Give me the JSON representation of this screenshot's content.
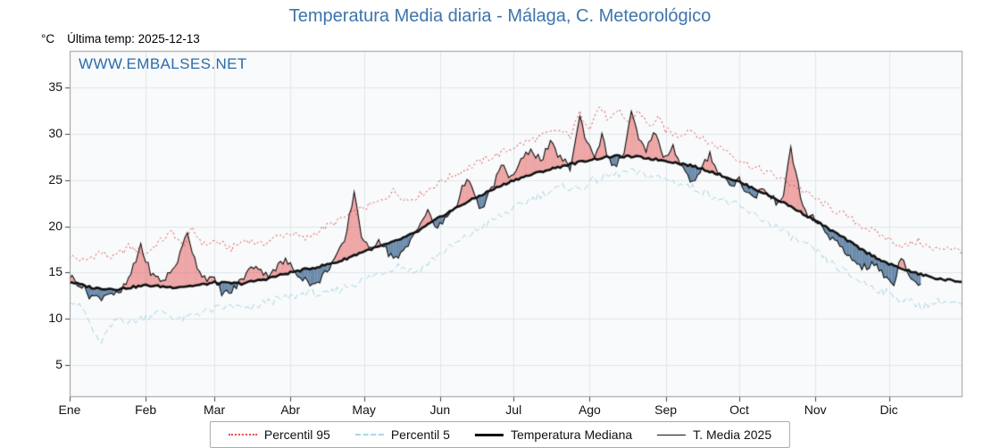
{
  "title": "Temperatura Media diaria - Málaga, C. Meteorológico",
  "header": {
    "unit": "°C",
    "last_temp": "Última temp: 2025-12-13"
  },
  "watermark": "WWW.EMBALSES.NET",
  "colors": {
    "title": "#3e74ab",
    "watermark": "#2c6ca8",
    "percentil95": "#e04b4b",
    "percentil5": "#a8d6e8",
    "median": "#111111",
    "media2025": "#111111",
    "fill_above_median": "rgba(228,80,80,0.5)",
    "fill_below_median": "rgba(70,110,150,0.8)",
    "plot_background": "#f8fafb",
    "grid": "#e3e7ea"
  },
  "legend": {
    "items": [
      {
        "label": "Percentil 95"
      },
      {
        "label": "Percentil 5"
      },
      {
        "label": "Temperatura Mediana"
      },
      {
        "label": "T. Media 2025"
      }
    ]
  },
  "chart_data": {
    "type": "line",
    "title": "Temperatura Media diaria - Málaga, C. Meteorológico",
    "xlabel": "",
    "ylabel": "°C",
    "ylim": [
      1.5,
      39
    ],
    "yticks": [
      5,
      10,
      15,
      20,
      25,
      30,
      35
    ],
    "grid": true,
    "legend_position": "bottom",
    "x_unit": "day_of_year",
    "days_in_year": 365,
    "month_ticks": {
      "labels": [
        "Ene",
        "Feb",
        "Mar",
        "Abr",
        "May",
        "Jun",
        "Jul",
        "Ago",
        "Sep",
        "Oct",
        "Nov",
        "Dic"
      ],
      "days": [
        0,
        31,
        59,
        90,
        120,
        151,
        181,
        212,
        243,
        273,
        304,
        334
      ]
    },
    "fills": {
      "between": [
        "T. Media 2025",
        "Temperatura Mediana"
      ],
      "above_color": "rgba(228,80,80,0.5)",
      "below_color": "rgba(70,110,150,0.8)"
    },
    "series": [
      {
        "name": "Percentil 95",
        "style": "dotted",
        "color": "#e04b4b",
        "width": 1,
        "jitter": 0.4,
        "points": [
          [
            0,
            16.8
          ],
          [
            6,
            16.2
          ],
          [
            12,
            17.2
          ],
          [
            18,
            16.6
          ],
          [
            24,
            17.8
          ],
          [
            31,
            17.0
          ],
          [
            36,
            18.2
          ],
          [
            42,
            19.4
          ],
          [
            46,
            17.8
          ],
          [
            50,
            19.6
          ],
          [
            55,
            18.0
          ],
          [
            59,
            18.4
          ],
          [
            66,
            17.6
          ],
          [
            72,
            18.6
          ],
          [
            78,
            18.0
          ],
          [
            84,
            18.8
          ],
          [
            90,
            19.3
          ],
          [
            96,
            18.6
          ],
          [
            102,
            19.6
          ],
          [
            108,
            20.4
          ],
          [
            114,
            21.2
          ],
          [
            120,
            22.0
          ],
          [
            126,
            22.6
          ],
          [
            132,
            23.8
          ],
          [
            138,
            22.8
          ],
          [
            144,
            23.6
          ],
          [
            151,
            24.8
          ],
          [
            157,
            25.6
          ],
          [
            163,
            26.4
          ],
          [
            169,
            27.2
          ],
          [
            175,
            27.8
          ],
          [
            181,
            28.6
          ],
          [
            187,
            29.2
          ],
          [
            193,
            29.8
          ],
          [
            199,
            30.4
          ],
          [
            204,
            29.8
          ],
          [
            208,
            32.2
          ],
          [
            212,
            30.8
          ],
          [
            216,
            33.0
          ],
          [
            220,
            31.4
          ],
          [
            224,
            32.4
          ],
          [
            228,
            31.2
          ],
          [
            232,
            32.6
          ],
          [
            236,
            30.8
          ],
          [
            240,
            31.6
          ],
          [
            243,
            30.4
          ],
          [
            248,
            29.8
          ],
          [
            253,
            30.6
          ],
          [
            258,
            29.4
          ],
          [
            263,
            28.8
          ],
          [
            268,
            28.2
          ],
          [
            273,
            27.2
          ],
          [
            279,
            26.4
          ],
          [
            285,
            25.8
          ],
          [
            291,
            25.0
          ],
          [
            297,
            24.2
          ],
          [
            304,
            23.0
          ],
          [
            310,
            22.0
          ],
          [
            316,
            21.2
          ],
          [
            322,
            20.2
          ],
          [
            328,
            19.4
          ],
          [
            334,
            18.6
          ],
          [
            340,
            17.8
          ],
          [
            346,
            18.4
          ],
          [
            352,
            17.4
          ],
          [
            358,
            17.8
          ],
          [
            364,
            17.2
          ]
        ]
      },
      {
        "name": "Percentil 5",
        "style": "dashed",
        "color": "#a8d6e8",
        "width": 1,
        "jitter": 0.45,
        "points": [
          [
            0,
            12.2
          ],
          [
            6,
            10.8
          ],
          [
            12,
            7.2
          ],
          [
            16,
            8.8
          ],
          [
            20,
            10.2
          ],
          [
            24,
            9.6
          ],
          [
            31,
            10.2
          ],
          [
            38,
            10.8
          ],
          [
            45,
            9.8
          ],
          [
            52,
            10.6
          ],
          [
            59,
            11.0
          ],
          [
            66,
            11.4
          ],
          [
            73,
            10.9
          ],
          [
            80,
            11.8
          ],
          [
            90,
            12.3
          ],
          [
            97,
            12.9
          ],
          [
            104,
            12.5
          ],
          [
            111,
            13.3
          ],
          [
            120,
            14.2
          ],
          [
            127,
            15.0
          ],
          [
            134,
            15.8
          ],
          [
            141,
            15.0
          ],
          [
            147,
            16.2
          ],
          [
            151,
            17.0
          ],
          [
            158,
            18.2
          ],
          [
            165,
            19.4
          ],
          [
            172,
            20.6
          ],
          [
            181,
            21.9
          ],
          [
            188,
            22.9
          ],
          [
            195,
            23.7
          ],
          [
            202,
            24.3
          ],
          [
            208,
            24.0
          ],
          [
            212,
            24.8
          ],
          [
            220,
            25.5
          ],
          [
            228,
            25.9
          ],
          [
            236,
            25.5
          ],
          [
            243,
            25.1
          ],
          [
            250,
            24.5
          ],
          [
            257,
            23.9
          ],
          [
            264,
            23.1
          ],
          [
            273,
            22.1
          ],
          [
            280,
            21.1
          ],
          [
            287,
            20.1
          ],
          [
            294,
            18.9
          ],
          [
            304,
            17.3
          ],
          [
            311,
            15.9
          ],
          [
            318,
            14.7
          ],
          [
            325,
            13.7
          ],
          [
            334,
            12.7
          ],
          [
            341,
            11.9
          ],
          [
            348,
            11.4
          ],
          [
            355,
            11.9
          ],
          [
            364,
            11.5
          ]
        ]
      },
      {
        "name": "Temperatura Mediana",
        "style": "solid",
        "color": "#111111",
        "width": 2.6,
        "jitter": 0.12,
        "points": [
          [
            0,
            14.0
          ],
          [
            10,
            13.3
          ],
          [
            20,
            13.2
          ],
          [
            31,
            13.6
          ],
          [
            42,
            13.4
          ],
          [
            52,
            13.6
          ],
          [
            59,
            13.9
          ],
          [
            70,
            13.8
          ],
          [
            80,
            14.3
          ],
          [
            90,
            15.0
          ],
          [
            101,
            15.6
          ],
          [
            110,
            16.2
          ],
          [
            120,
            17.3
          ],
          [
            131,
            18.2
          ],
          [
            141,
            19.3
          ],
          [
            151,
            21.0
          ],
          [
            161,
            22.5
          ],
          [
            171,
            23.8
          ],
          [
            181,
            25.0
          ],
          [
            192,
            25.9
          ],
          [
            202,
            26.6
          ],
          [
            212,
            27.2
          ],
          [
            222,
            27.6
          ],
          [
            232,
            27.5
          ],
          [
            243,
            27.1
          ],
          [
            253,
            26.6
          ],
          [
            263,
            25.8
          ],
          [
            273,
            24.8
          ],
          [
            283,
            23.6
          ],
          [
            293,
            22.3
          ],
          [
            304,
            20.6
          ],
          [
            314,
            19.0
          ],
          [
            324,
            17.3
          ],
          [
            334,
            15.9
          ],
          [
            344,
            15.0
          ],
          [
            354,
            14.3
          ],
          [
            364,
            14.0
          ]
        ]
      },
      {
        "name": "T. Media 2025",
        "style": "solid",
        "color": "#111111",
        "width": 1.1,
        "jitter": 0.45,
        "end_day": 347,
        "points": [
          [
            0,
            14.6
          ],
          [
            4,
            13.8
          ],
          [
            8,
            12.6
          ],
          [
            12,
            12.2
          ],
          [
            16,
            12.9
          ],
          [
            20,
            12.5
          ],
          [
            24,
            14.2
          ],
          [
            27,
            16.2
          ],
          [
            29,
            18.1
          ],
          [
            31,
            16.2
          ],
          [
            34,
            14.6
          ],
          [
            38,
            14.1
          ],
          [
            42,
            15.3
          ],
          [
            45,
            16.9
          ],
          [
            48,
            19.5
          ],
          [
            51,
            16.4
          ],
          [
            54,
            14.7
          ],
          [
            59,
            14.1
          ],
          [
            62,
            12.9
          ],
          [
            65,
            12.7
          ],
          [
            68,
            13.5
          ],
          [
            72,
            14.9
          ],
          [
            76,
            15.9
          ],
          [
            80,
            14.7
          ],
          [
            84,
            15.5
          ],
          [
            88,
            16.3
          ],
          [
            92,
            15.1
          ],
          [
            96,
            14.3
          ],
          [
            100,
            13.5
          ],
          [
            104,
            14.9
          ],
          [
            108,
            16.5
          ],
          [
            112,
            18.1
          ],
          [
            116,
            23.8
          ],
          [
            119,
            19.1
          ],
          [
            122,
            17.3
          ],
          [
            126,
            18.7
          ],
          [
            130,
            17.1
          ],
          [
            134,
            16.5
          ],
          [
            138,
            17.9
          ],
          [
            142,
            20.1
          ],
          [
            146,
            21.5
          ],
          [
            150,
            19.7
          ],
          [
            154,
            21.1
          ],
          [
            158,
            22.5
          ],
          [
            162,
            25.5
          ],
          [
            165,
            23.1
          ],
          [
            168,
            21.7
          ],
          [
            172,
            24.1
          ],
          [
            176,
            26.5
          ],
          [
            180,
            25.3
          ],
          [
            184,
            26.9
          ],
          [
            188,
            28.5
          ],
          [
            192,
            27.1
          ],
          [
            196,
            28.9
          ],
          [
            200,
            27.5
          ],
          [
            204,
            26.3
          ],
          [
            208,
            31.8
          ],
          [
            211,
            29.1
          ],
          [
            214,
            27.7
          ],
          [
            217,
            29.7
          ],
          [
            220,
            27.1
          ],
          [
            223,
            26.5
          ],
          [
            226,
            28.1
          ],
          [
            229,
            32.2
          ],
          [
            232,
            29.5
          ],
          [
            235,
            27.9
          ],
          [
            238,
            30.5
          ],
          [
            241,
            28.3
          ],
          [
            243,
            27.5
          ],
          [
            246,
            28.7
          ],
          [
            249,
            26.9
          ],
          [
            252,
            25.3
          ],
          [
            255,
            24.7
          ],
          [
            258,
            26.3
          ],
          [
            261,
            27.9
          ],
          [
            264,
            26.1
          ],
          [
            267,
            25.1
          ],
          [
            270,
            24.5
          ],
          [
            273,
            25.1
          ],
          [
            276,
            23.7
          ],
          [
            279,
            22.9
          ],
          [
            282,
            24.3
          ],
          [
            285,
            23.3
          ],
          [
            288,
            22.7
          ],
          [
            291,
            23.5
          ],
          [
            294,
            28.2
          ],
          [
            296,
            26.1
          ],
          [
            298,
            23.1
          ],
          [
            300,
            21.5
          ],
          [
            304,
            20.7
          ],
          [
            308,
            19.5
          ],
          [
            312,
            18.3
          ],
          [
            316,
            17.1
          ],
          [
            320,
            16.3
          ],
          [
            324,
            15.5
          ],
          [
            328,
            15.9
          ],
          [
            332,
            14.7
          ],
          [
            336,
            13.7
          ],
          [
            339,
            16.9
          ],
          [
            342,
            15.1
          ],
          [
            345,
            13.9
          ],
          [
            347,
            13.8
          ]
        ]
      }
    ]
  }
}
